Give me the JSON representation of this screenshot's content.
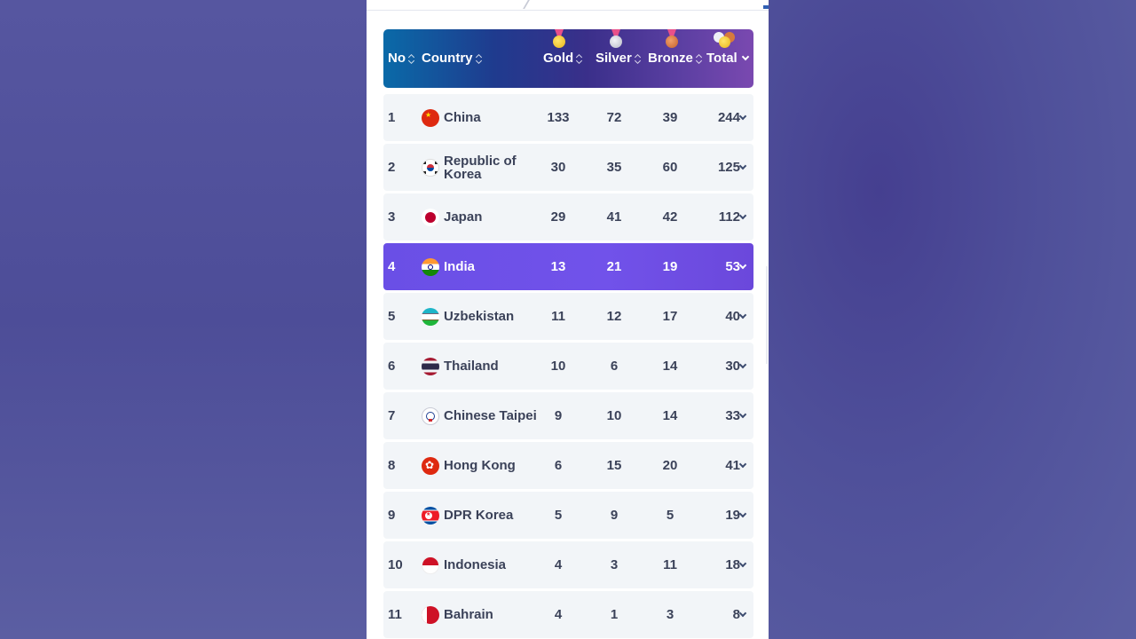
{
  "header": {
    "no": "No",
    "country": "Country",
    "gold": "Gold",
    "silver": "Silver",
    "bronze": "Bronze",
    "total": "Total"
  },
  "medal_icons": [
    "gold-medal-icon",
    "silver-medal-icon",
    "bronze-medal-icon",
    "total-medals-icon"
  ],
  "colors": {
    "highlight_row": "#6a4fe6",
    "row_bg": "#f2f5f8",
    "text": "#3b4259",
    "background": "#4d4d98"
  },
  "rows": [
    {
      "rank": "1",
      "country": "China",
      "gold": "133",
      "silver": "72",
      "bronze": "39",
      "total": "244",
      "flag": "china-flag-icon"
    },
    {
      "rank": "2",
      "country": "Republic of Korea",
      "gold": "30",
      "silver": "35",
      "bronze": "60",
      "total": "125",
      "flag": "korea-flag-icon"
    },
    {
      "rank": "3",
      "country": "Japan",
      "gold": "29",
      "silver": "41",
      "bronze": "42",
      "total": "112",
      "flag": "japan-flag-icon"
    },
    {
      "rank": "4",
      "country": "India",
      "gold": "13",
      "silver": "21",
      "bronze": "19",
      "total": "53",
      "flag": "india-flag-icon",
      "highlighted": true
    },
    {
      "rank": "5",
      "country": "Uzbekistan",
      "gold": "11",
      "silver": "12",
      "bronze": "17",
      "total": "40",
      "flag": "uzbekistan-flag-icon"
    },
    {
      "rank": "6",
      "country": "Thailand",
      "gold": "10",
      "silver": "6",
      "bronze": "14",
      "total": "30",
      "flag": "thailand-flag-icon"
    },
    {
      "rank": "7",
      "country": "Chinese Taipei",
      "gold": "9",
      "silver": "10",
      "bronze": "14",
      "total": "33",
      "flag": "chinese-taipei-flag-icon"
    },
    {
      "rank": "8",
      "country": "Hong Kong",
      "gold": "6",
      "silver": "15",
      "bronze": "20",
      "total": "41",
      "flag": "hong-kong-flag-icon"
    },
    {
      "rank": "9",
      "country": "DPR Korea",
      "gold": "5",
      "silver": "9",
      "bronze": "5",
      "total": "19",
      "flag": "dpr-korea-flag-icon"
    },
    {
      "rank": "10",
      "country": "Indonesia",
      "gold": "4",
      "silver": "3",
      "bronze": "11",
      "total": "18",
      "flag": "indonesia-flag-icon"
    },
    {
      "rank": "11",
      "country": "Bahrain",
      "gold": "4",
      "silver": "1",
      "bronze": "3",
      "total": "8",
      "flag": "bahrain-flag-icon"
    }
  ]
}
